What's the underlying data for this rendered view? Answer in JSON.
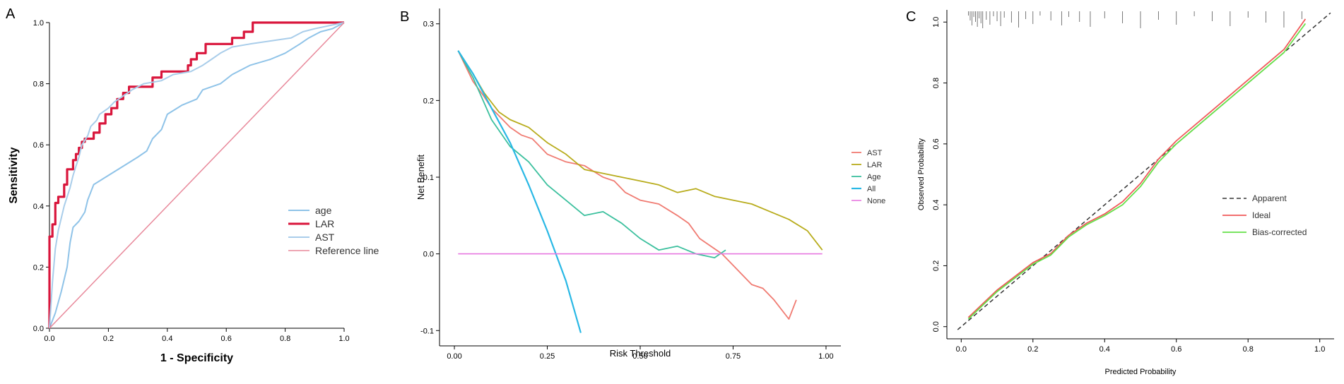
{
  "chart_data": [
    {
      "panel": "A",
      "type": "line",
      "xlabel": "1 - Specificity",
      "ylabel": "Sensitivity",
      "xlim": [
        0,
        1
      ],
      "ylim": [
        0,
        1
      ],
      "xticks": [
        "0.0",
        "0.2",
        "0.4",
        "0.6",
        "0.8",
        "1.0"
      ],
      "yticks": [
        "0.0",
        "0.2",
        "0.4",
        "0.6",
        "0.8",
        "1.0"
      ],
      "legend_position": "bottom-right",
      "series": [
        {
          "name": "age",
          "color": "#8fc3e8",
          "width": 2,
          "points": [
            [
              0,
              0
            ],
            [
              0.02,
              0.05
            ],
            [
              0.04,
              0.12
            ],
            [
              0.06,
              0.2
            ],
            [
              0.07,
              0.28
            ],
            [
              0.08,
              0.33
            ],
            [
              0.1,
              0.35
            ],
            [
              0.12,
              0.38
            ],
            [
              0.13,
              0.42
            ],
            [
              0.15,
              0.47
            ],
            [
              0.2,
              0.5
            ],
            [
              0.25,
              0.53
            ],
            [
              0.3,
              0.56
            ],
            [
              0.33,
              0.58
            ],
            [
              0.35,
              0.62
            ],
            [
              0.38,
              0.65
            ],
            [
              0.4,
              0.7
            ],
            [
              0.45,
              0.73
            ],
            [
              0.5,
              0.75
            ],
            [
              0.52,
              0.78
            ],
            [
              0.58,
              0.8
            ],
            [
              0.62,
              0.83
            ],
            [
              0.68,
              0.86
            ],
            [
              0.75,
              0.88
            ],
            [
              0.8,
              0.9
            ],
            [
              0.85,
              0.93
            ],
            [
              0.88,
              0.95
            ],
            [
              0.92,
              0.97
            ],
            [
              0.96,
              0.98
            ],
            [
              1,
              1
            ]
          ]
        },
        {
          "name": "LAR",
          "color": "#d9163c",
          "width": 3.2,
          "points": [
            [
              0,
              0
            ],
            [
              0,
              0.3
            ],
            [
              0.01,
              0.3
            ],
            [
              0.01,
              0.34
            ],
            [
              0.02,
              0.34
            ],
            [
              0.02,
              0.41
            ],
            [
              0.03,
              0.41
            ],
            [
              0.03,
              0.43
            ],
            [
              0.05,
              0.43
            ],
            [
              0.05,
              0.47
            ],
            [
              0.06,
              0.47
            ],
            [
              0.06,
              0.52
            ],
            [
              0.08,
              0.52
            ],
            [
              0.08,
              0.55
            ],
            [
              0.09,
              0.55
            ],
            [
              0.09,
              0.57
            ],
            [
              0.1,
              0.57
            ],
            [
              0.1,
              0.59
            ],
            [
              0.11,
              0.59
            ],
            [
              0.11,
              0.61
            ],
            [
              0.12,
              0.61
            ],
            [
              0.12,
              0.62
            ],
            [
              0.15,
              0.62
            ],
            [
              0.15,
              0.64
            ],
            [
              0.17,
              0.64
            ],
            [
              0.17,
              0.67
            ],
            [
              0.19,
              0.67
            ],
            [
              0.19,
              0.7
            ],
            [
              0.21,
              0.7
            ],
            [
              0.21,
              0.72
            ],
            [
              0.23,
              0.72
            ],
            [
              0.23,
              0.75
            ],
            [
              0.25,
              0.75
            ],
            [
              0.25,
              0.77
            ],
            [
              0.27,
              0.77
            ],
            [
              0.27,
              0.79
            ],
            [
              0.35,
              0.79
            ],
            [
              0.35,
              0.82
            ],
            [
              0.38,
              0.82
            ],
            [
              0.38,
              0.84
            ],
            [
              0.47,
              0.84
            ],
            [
              0.47,
              0.86
            ],
            [
              0.48,
              0.86
            ],
            [
              0.48,
              0.88
            ],
            [
              0.5,
              0.88
            ],
            [
              0.5,
              0.9
            ],
            [
              0.53,
              0.9
            ],
            [
              0.53,
              0.93
            ],
            [
              0.62,
              0.93
            ],
            [
              0.62,
              0.95
            ],
            [
              0.66,
              0.95
            ],
            [
              0.66,
              0.97
            ],
            [
              0.69,
              0.97
            ],
            [
              0.69,
              1
            ],
            [
              1,
              1
            ]
          ]
        },
        {
          "name": "AST",
          "color": "#a9cdea",
          "width": 2,
          "points": [
            [
              0,
              0
            ],
            [
              0.01,
              0.15
            ],
            [
              0.02,
              0.26
            ],
            [
              0.03,
              0.32
            ],
            [
              0.04,
              0.36
            ],
            [
              0.05,
              0.4
            ],
            [
              0.06,
              0.43
            ],
            [
              0.07,
              0.46
            ],
            [
              0.08,
              0.5
            ],
            [
              0.09,
              0.53
            ],
            [
              0.1,
              0.56
            ],
            [
              0.11,
              0.6
            ],
            [
              0.13,
              0.63
            ],
            [
              0.14,
              0.66
            ],
            [
              0.16,
              0.68
            ],
            [
              0.17,
              0.7
            ],
            [
              0.2,
              0.72
            ],
            [
              0.22,
              0.74
            ],
            [
              0.25,
              0.76
            ],
            [
              0.28,
              0.78
            ],
            [
              0.32,
              0.8
            ],
            [
              0.38,
              0.81
            ],
            [
              0.42,
              0.83
            ],
            [
              0.48,
              0.84
            ],
            [
              0.52,
              0.86
            ],
            [
              0.55,
              0.88
            ],
            [
              0.58,
              0.9
            ],
            [
              0.62,
              0.92
            ],
            [
              0.68,
              0.93
            ],
            [
              0.75,
              0.94
            ],
            [
              0.82,
              0.95
            ],
            [
              0.86,
              0.97
            ],
            [
              0.9,
              0.98
            ],
            [
              0.95,
              0.99
            ],
            [
              1,
              1
            ]
          ]
        },
        {
          "name": "Reference line",
          "color": "#e8889a",
          "width": 1.5,
          "points": [
            [
              0,
              0
            ],
            [
              1,
              1
            ]
          ]
        }
      ]
    },
    {
      "panel": "B",
      "type": "line",
      "xlabel": "Risk Threshold",
      "ylabel": "Net Benefit",
      "xlim": [
        -0.04,
        1.04
      ],
      "ylim": [
        -0.12,
        0.32
      ],
      "xticks": [
        "0.00",
        "0.25",
        "0.50",
        "0.75",
        "1.00"
      ],
      "yticks": [
        "-0.1",
        "0.0",
        "0.1",
        "0.2",
        "0.3"
      ],
      "legend_position": "right",
      "series": [
        {
          "name": "AST",
          "color": "#f07b72",
          "width": 1.8,
          "points": [
            [
              0.01,
              0.265
            ],
            [
              0.05,
              0.225
            ],
            [
              0.08,
              0.205
            ],
            [
              0.1,
              0.19
            ],
            [
              0.13,
              0.175
            ],
            [
              0.15,
              0.165
            ],
            [
              0.18,
              0.155
            ],
            [
              0.21,
              0.15
            ],
            [
              0.25,
              0.13
            ],
            [
              0.3,
              0.12
            ],
            [
              0.35,
              0.115
            ],
            [
              0.4,
              0.1
            ],
            [
              0.43,
              0.095
            ],
            [
              0.46,
              0.08
            ],
            [
              0.5,
              0.07
            ],
            [
              0.55,
              0.065
            ],
            [
              0.6,
              0.05
            ],
            [
              0.63,
              0.04
            ],
            [
              0.66,
              0.02
            ],
            [
              0.69,
              0.01
            ],
            [
              0.72,
              0.0
            ],
            [
              0.75,
              -0.015
            ],
            [
              0.78,
              -0.03
            ],
            [
              0.8,
              -0.04
            ],
            [
              0.83,
              -0.045
            ],
            [
              0.86,
              -0.06
            ],
            [
              0.9,
              -0.085
            ],
            [
              0.92,
              -0.06
            ]
          ]
        },
        {
          "name": "LAR",
          "color": "#b8ac1c",
          "width": 1.8,
          "points": [
            [
              0.01,
              0.265
            ],
            [
              0.05,
              0.235
            ],
            [
              0.08,
              0.21
            ],
            [
              0.12,
              0.185
            ],
            [
              0.15,
              0.175
            ],
            [
              0.2,
              0.165
            ],
            [
              0.25,
              0.145
            ],
            [
              0.3,
              0.13
            ],
            [
              0.35,
              0.11
            ],
            [
              0.4,
              0.105
            ],
            [
              0.45,
              0.1
            ],
            [
              0.5,
              0.095
            ],
            [
              0.55,
              0.09
            ],
            [
              0.6,
              0.08
            ],
            [
              0.65,
              0.085
            ],
            [
              0.7,
              0.075
            ],
            [
              0.75,
              0.07
            ],
            [
              0.8,
              0.065
            ],
            [
              0.85,
              0.055
            ],
            [
              0.9,
              0.045
            ],
            [
              0.95,
              0.03
            ],
            [
              0.99,
              0.005
            ]
          ]
        },
        {
          "name": "Age",
          "color": "#3cc09e",
          "width": 1.8,
          "points": [
            [
              0.01,
              0.265
            ],
            [
              0.05,
              0.23
            ],
            [
              0.1,
              0.175
            ],
            [
              0.15,
              0.14
            ],
            [
              0.2,
              0.12
            ],
            [
              0.25,
              0.09
            ],
            [
              0.3,
              0.07
            ],
            [
              0.35,
              0.05
            ],
            [
              0.4,
              0.055
            ],
            [
              0.45,
              0.04
            ],
            [
              0.5,
              0.02
            ],
            [
              0.55,
              0.005
            ],
            [
              0.6,
              0.01
            ],
            [
              0.65,
              0.0
            ],
            [
              0.7,
              -0.005
            ],
            [
              0.73,
              0.005
            ]
          ]
        },
        {
          "name": "All",
          "color": "#29b8e5",
          "width": 2.2,
          "points": [
            [
              0.01,
              0.265
            ],
            [
              0.05,
              0.235
            ],
            [
              0.1,
              0.19
            ],
            [
              0.15,
              0.145
            ],
            [
              0.2,
              0.09
            ],
            [
              0.25,
              0.03
            ],
            [
              0.3,
              -0.035
            ],
            [
              0.34,
              -0.103
            ]
          ]
        },
        {
          "name": "None",
          "color": "#e878e0",
          "width": 1.6,
          "points": [
            [
              0.01,
              0.0
            ],
            [
              0.99,
              0.0
            ]
          ]
        }
      ]
    },
    {
      "panel": "C",
      "type": "line",
      "xlabel": "Predicted Probability",
      "ylabel": "Observed Probability",
      "xlim": [
        -0.04,
        1.04
      ],
      "ylim": [
        -0.04,
        1.04
      ],
      "xticks": [
        "0.0",
        "0.2",
        "0.4",
        "0.6",
        "0.8",
        "1.0"
      ],
      "yticks": [
        "0.0",
        "0.2",
        "0.4",
        "0.6",
        "0.8",
        "1.0"
      ],
      "legend_position": "right",
      "rug": [
        0.02,
        0.025,
        0.03,
        0.035,
        0.04,
        0.045,
        0.05,
        0.055,
        0.06,
        0.07,
        0.08,
        0.09,
        0.1,
        0.11,
        0.12,
        0.14,
        0.16,
        0.18,
        0.2,
        0.22,
        0.25,
        0.28,
        0.3,
        0.33,
        0.36,
        0.4,
        0.45,
        0.5,
        0.55,
        0.6,
        0.65,
        0.7,
        0.75,
        0.8,
        0.85,
        0.9,
        0.95
      ],
      "series": [
        {
          "name": "Apparent",
          "color": "#333333",
          "width": 1.5,
          "dash": true,
          "points": [
            [
              -0.01,
              -0.01
            ],
            [
              1.03,
              1.03
            ]
          ]
        },
        {
          "name": "Ideal",
          "color": "#f05a5a",
          "width": 1.8,
          "points": [
            [
              0.02,
              0.03
            ],
            [
              0.1,
              0.12
            ],
            [
              0.2,
              0.21
            ],
            [
              0.25,
              0.24
            ],
            [
              0.3,
              0.3
            ],
            [
              0.35,
              0.34
            ],
            [
              0.4,
              0.37
            ],
            [
              0.45,
              0.41
            ],
            [
              0.5,
              0.47
            ],
            [
              0.55,
              0.55
            ],
            [
              0.6,
              0.61
            ],
            [
              0.7,
              0.71
            ],
            [
              0.8,
              0.81
            ],
            [
              0.9,
              0.91
            ],
            [
              0.96,
              1.01
            ]
          ]
        },
        {
          "name": "Bias-corrected",
          "color": "#66e04a",
          "width": 1.8,
          "points": [
            [
              0.02,
              0.025
            ],
            [
              0.1,
              0.115
            ],
            [
              0.2,
              0.205
            ],
            [
              0.25,
              0.235
            ],
            [
              0.3,
              0.295
            ],
            [
              0.35,
              0.335
            ],
            [
              0.4,
              0.365
            ],
            [
              0.45,
              0.4
            ],
            [
              0.5,
              0.46
            ],
            [
              0.55,
              0.54
            ],
            [
              0.6,
              0.6
            ],
            [
              0.7,
              0.7
            ],
            [
              0.8,
              0.8
            ],
            [
              0.9,
              0.9
            ],
            [
              0.96,
              0.995
            ]
          ]
        }
      ]
    }
  ],
  "panel_labels": [
    "A",
    "B",
    "C"
  ]
}
